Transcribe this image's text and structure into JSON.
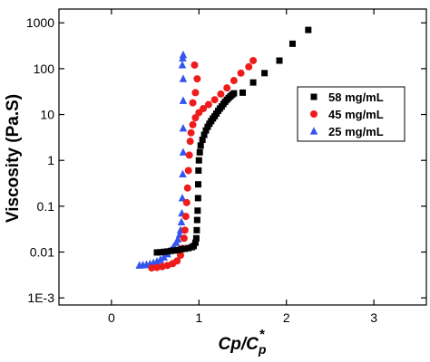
{
  "chart_data": {
    "type": "scatter",
    "title": "",
    "xlabel": "Cp/C",
    "xlabel_sub": "p",
    "xlabel_sup": "*",
    "ylabel": "Viscosity (Pa.S)",
    "xlim": [
      -0.6,
      3.6
    ],
    "ylim": [
      0.0007,
      2000
    ],
    "y_scale": "log",
    "x_ticks": [
      0,
      1,
      2,
      3
    ],
    "x_tick_labels": [
      "0",
      "1",
      "2",
      "3"
    ],
    "y_ticks": [
      0.001,
      0.01,
      0.1,
      1,
      10,
      100,
      1000
    ],
    "y_tick_labels": [
      "1E-3",
      "0.01",
      "0.1",
      "1",
      "10",
      "100",
      "1000"
    ],
    "grid": false,
    "legend_position": "right",
    "series": [
      {
        "name": "58 mg/mL",
        "marker": "square",
        "color": "#000000",
        "points": [
          [
            0.52,
            0.0098
          ],
          [
            0.56,
            0.0099
          ],
          [
            0.6,
            0.0101
          ],
          [
            0.64,
            0.0103
          ],
          [
            0.68,
            0.0106
          ],
          [
            0.72,
            0.0108
          ],
          [
            0.76,
            0.0111
          ],
          [
            0.8,
            0.0115
          ],
          [
            0.84,
            0.0118
          ],
          [
            0.88,
            0.0122
          ],
          [
            0.92,
            0.0128
          ],
          [
            0.94,
            0.0135
          ],
          [
            0.96,
            0.016
          ],
          [
            0.97,
            0.02
          ],
          [
            0.975,
            0.03
          ],
          [
            0.98,
            0.05
          ],
          [
            0.985,
            0.08
          ],
          [
            0.99,
            0.15
          ],
          [
            0.992,
            0.3
          ],
          [
            0.995,
            0.6
          ],
          [
            1.0,
            1.0
          ],
          [
            1.01,
            1.5
          ],
          [
            1.02,
            2.1
          ],
          [
            1.04,
            2.8
          ],
          [
            1.06,
            3.6
          ],
          [
            1.08,
            4.5
          ],
          [
            1.1,
            5.4
          ],
          [
            1.12,
            6.3
          ],
          [
            1.14,
            7.2
          ],
          [
            1.16,
            8.2
          ],
          [
            1.18,
            9.2
          ],
          [
            1.2,
            10.5
          ],
          [
            1.22,
            12
          ],
          [
            1.24,
            13.5
          ],
          [
            1.26,
            15
          ],
          [
            1.28,
            17
          ],
          [
            1.3,
            19
          ],
          [
            1.32,
            21
          ],
          [
            1.34,
            23
          ],
          [
            1.36,
            25
          ],
          [
            1.38,
            27
          ],
          [
            1.4,
            29
          ],
          [
            1.5,
            30
          ],
          [
            1.62,
            50
          ],
          [
            1.75,
            80
          ],
          [
            1.92,
            150
          ],
          [
            2.07,
            350
          ],
          [
            2.25,
            700
          ]
        ]
      },
      {
        "name": "45 mg/mL",
        "marker": "circle",
        "color": "#ee1c1c",
        "points": [
          [
            0.46,
            0.0045
          ],
          [
            0.52,
            0.0046
          ],
          [
            0.58,
            0.0048
          ],
          [
            0.64,
            0.0051
          ],
          [
            0.7,
            0.0056
          ],
          [
            0.75,
            0.0064
          ],
          [
            0.79,
            0.0085
          ],
          [
            0.81,
            0.012
          ],
          [
            0.83,
            0.02
          ],
          [
            0.84,
            0.03
          ],
          [
            0.85,
            0.06
          ],
          [
            0.86,
            0.12
          ],
          [
            0.87,
            0.25
          ],
          [
            0.88,
            0.6
          ],
          [
            0.89,
            1.3
          ],
          [
            0.9,
            2.6
          ],
          [
            0.91,
            4
          ],
          [
            0.93,
            6
          ],
          [
            0.96,
            8.5
          ],
          [
            1.0,
            11
          ],
          [
            1.05,
            13.5
          ],
          [
            1.11,
            16.5
          ],
          [
            1.18,
            21
          ],
          [
            1.25,
            28
          ],
          [
            1.32,
            38
          ],
          [
            1.4,
            55
          ],
          [
            1.48,
            80
          ],
          [
            1.57,
            110
          ],
          [
            1.62,
            150
          ],
          [
            0.93,
            18
          ],
          [
            0.96,
            30
          ],
          [
            0.98,
            60
          ],
          [
            0.95,
            120
          ]
        ]
      },
      {
        "name": "25 mg/mL",
        "marker": "triangle",
        "color": "#3355ee",
        "points": [
          [
            0.32,
            0.0051
          ],
          [
            0.36,
            0.0052
          ],
          [
            0.4,
            0.0053
          ],
          [
            0.44,
            0.0055
          ],
          [
            0.48,
            0.0058
          ],
          [
            0.52,
            0.0062
          ],
          [
            0.56,
            0.0068
          ],
          [
            0.6,
            0.0077
          ],
          [
            0.64,
            0.009
          ],
          [
            0.68,
            0.011
          ],
          [
            0.71,
            0.013
          ],
          [
            0.74,
            0.016
          ],
          [
            0.76,
            0.019
          ],
          [
            0.78,
            0.024
          ],
          [
            0.79,
            0.03
          ],
          [
            0.8,
            0.045
          ],
          [
            0.805,
            0.07
          ],
          [
            0.81,
            0.15
          ],
          [
            0.815,
            0.5
          ],
          [
            0.82,
            1.5
          ],
          [
            0.82,
            5
          ],
          [
            0.82,
            20
          ],
          [
            0.82,
            60
          ],
          [
            0.81,
            120
          ],
          [
            0.815,
            170
          ],
          [
            0.82,
            200
          ]
        ]
      }
    ]
  }
}
